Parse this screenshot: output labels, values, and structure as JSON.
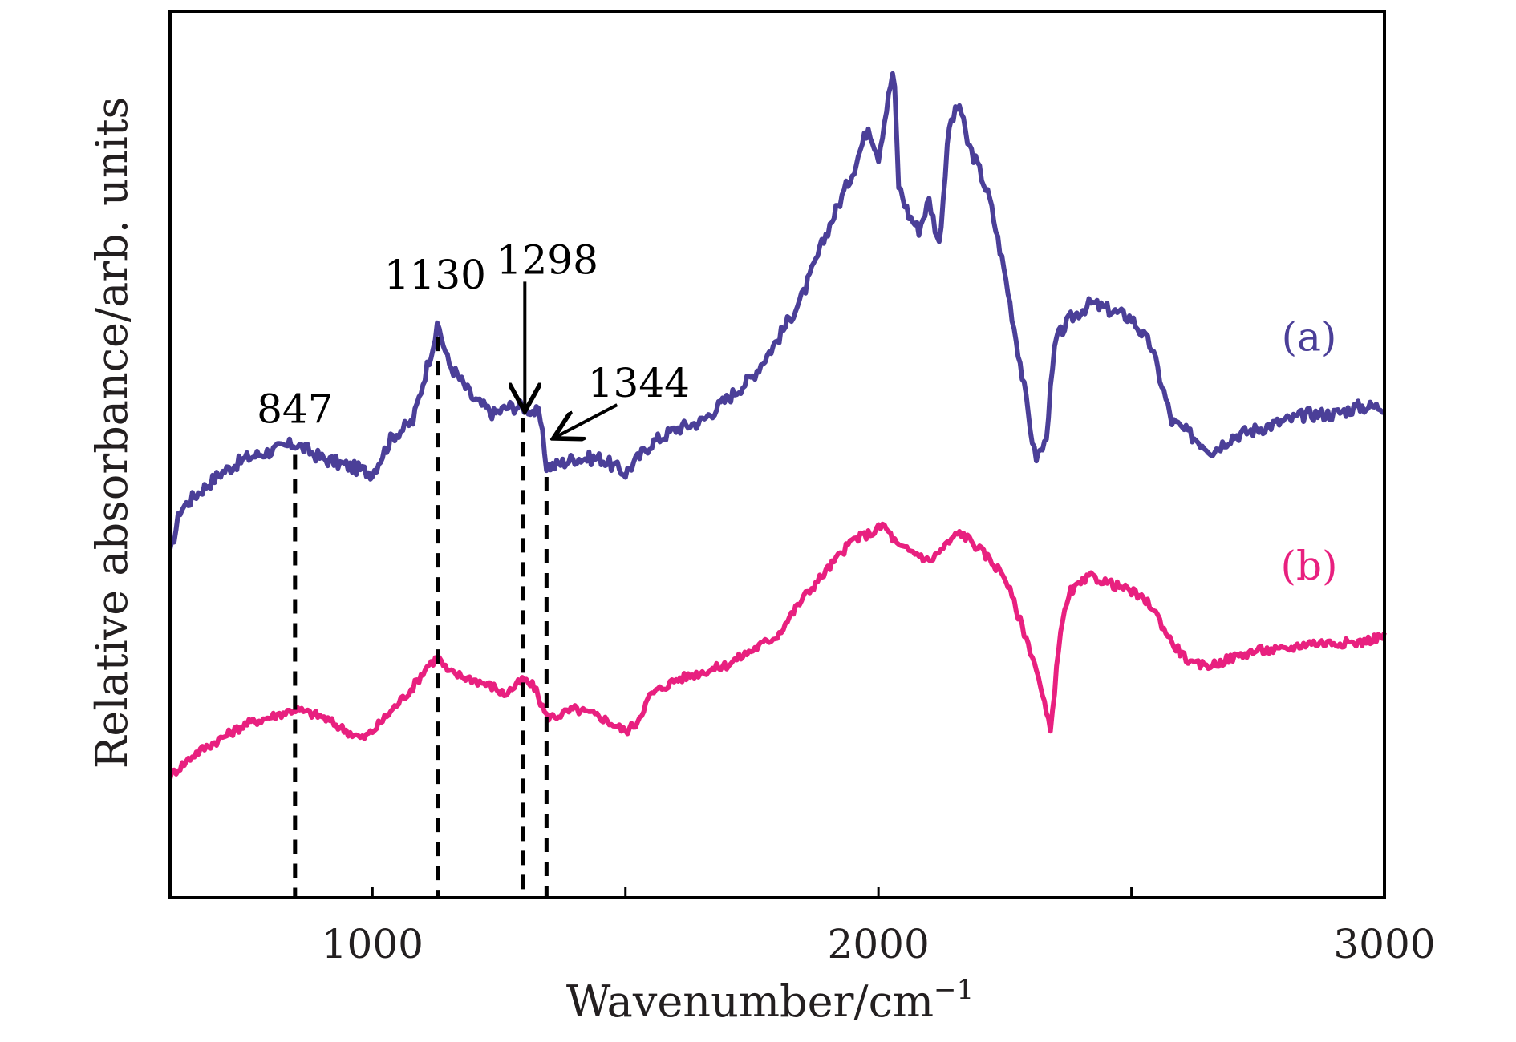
{
  "chart_data": {
    "type": "line",
    "xlabel": "Wavenumber/cm",
    "xlabel_sup": "−1",
    "ylabel": "Relative absorbance/arb. units",
    "xlim": [
      600,
      3000
    ],
    "ylim": [
      0,
      1
    ],
    "x_ticks": [
      1000,
      1500,
      2000,
      2500,
      3000
    ],
    "x_tick_labels": [
      "1000",
      "2000",
      "3000"
    ],
    "x_tick_label_values": [
      1000,
      2000,
      3000
    ],
    "grid": false,
    "legend": "none",
    "series": [
      {
        "name": "(a)",
        "color": "#4b3f98",
        "x": [
          600,
          620,
          650,
          700,
          750,
          800,
          847,
          900,
          950,
          1000,
          1040,
          1080,
          1110,
          1130,
          1150,
          1200,
          1240,
          1270,
          1298,
          1330,
          1344,
          1360,
          1400,
          1450,
          1500,
          1550,
          1600,
          1650,
          1700,
          1750,
          1800,
          1850,
          1900,
          1950,
          1980,
          2000,
          2020,
          2030,
          2040,
          2060,
          2080,
          2100,
          2120,
          2140,
          2160,
          2175,
          2200,
          2220,
          2250,
          2280,
          2310,
          2330,
          2350,
          2380,
          2420,
          2460,
          2500,
          2540,
          2580,
          2620,
          2660,
          2700,
          2750,
          2800,
          2850,
          2900,
          2950,
          3000
        ],
        "y": [
          0.34,
          0.4,
          0.42,
          0.45,
          0.47,
          0.48,
          0.49,
          0.47,
          0.46,
          0.45,
          0.5,
          0.52,
          0.6,
          0.65,
          0.6,
          0.55,
          0.53,
          0.54,
          0.54,
          0.53,
          0.46,
          0.46,
          0.47,
          0.47,
          0.45,
          0.49,
          0.51,
          0.52,
          0.55,
          0.58,
          0.63,
          0.69,
          0.78,
          0.86,
          0.92,
          0.88,
          0.96,
          1.0,
          0.84,
          0.8,
          0.78,
          0.82,
          0.76,
          0.92,
          0.95,
          0.9,
          0.86,
          0.82,
          0.72,
          0.6,
          0.47,
          0.49,
          0.63,
          0.66,
          0.68,
          0.67,
          0.66,
          0.62,
          0.52,
          0.5,
          0.48,
          0.5,
          0.51,
          0.52,
          0.53,
          0.53,
          0.54,
          0.54
        ]
      },
      {
        "name": "(b)",
        "color": "#e8207f",
        "x": [
          600,
          650,
          700,
          750,
          800,
          847,
          900,
          950,
          980,
          1000,
          1040,
          1080,
          1110,
          1130,
          1150,
          1200,
          1240,
          1260,
          1280,
          1298,
          1320,
          1344,
          1360,
          1400,
          1450,
          1500,
          1520,
          1550,
          1600,
          1650,
          1700,
          1750,
          1800,
          1850,
          1900,
          1950,
          1990,
          2010,
          2040,
          2080,
          2100,
          2130,
          2160,
          2180,
          2210,
          2250,
          2280,
          2310,
          2340,
          2360,
          2380,
          2420,
          2460,
          2500,
          2540,
          2580,
          2620,
          2660,
          2700,
          2750,
          2800,
          2850,
          2900,
          2950,
          3000
        ],
        "y": [
          0.04,
          0.07,
          0.09,
          0.11,
          0.12,
          0.13,
          0.12,
          0.1,
          0.09,
          0.1,
          0.13,
          0.16,
          0.19,
          0.2,
          0.18,
          0.17,
          0.16,
          0.15,
          0.16,
          0.17,
          0.16,
          0.12,
          0.12,
          0.13,
          0.12,
          0.1,
          0.11,
          0.15,
          0.17,
          0.18,
          0.19,
          0.21,
          0.23,
          0.28,
          0.32,
          0.36,
          0.37,
          0.38,
          0.35,
          0.34,
          0.33,
          0.35,
          0.37,
          0.36,
          0.34,
          0.31,
          0.25,
          0.19,
          0.1,
          0.24,
          0.29,
          0.31,
          0.3,
          0.29,
          0.27,
          0.22,
          0.19,
          0.19,
          0.2,
          0.21,
          0.21,
          0.22,
          0.22,
          0.22,
          0.23
        ]
      }
    ],
    "markers": [
      {
        "x": 847,
        "label": "847",
        "style": "dashed-line"
      },
      {
        "x": 1130,
        "label": "1130",
        "style": "dashed-line"
      },
      {
        "x": 1298,
        "label": "1298",
        "style": "dashed-line-arrow"
      },
      {
        "x": 1344,
        "label": "1344",
        "style": "dashed-line-arrow"
      }
    ]
  },
  "frame_color": "#000000",
  "text_color": "#231f20"
}
